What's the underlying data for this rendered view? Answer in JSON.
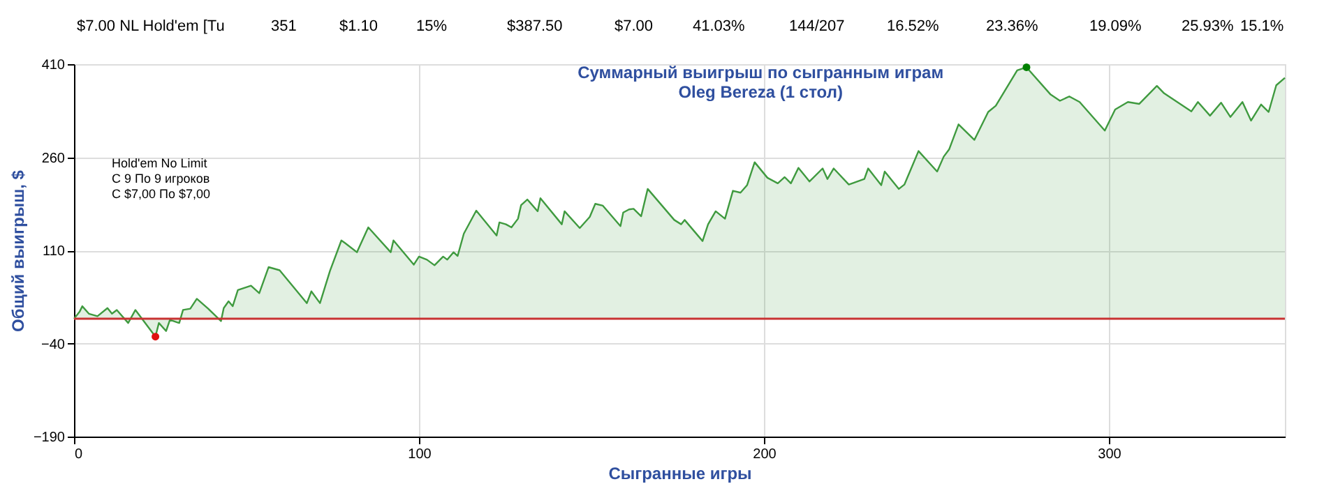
{
  "chart_data": {
    "type": "area",
    "title": "Суммарный выигрыш по сыгранным играм",
    "subtitle": "Oleg Bereza (1 стол)",
    "xlabel": "Сыгранные игры",
    "ylabel": "Общий выигрыш, $",
    "annotations": [
      "$7.00 NL Hold'em [Tu",
      "351",
      "$1.10",
      "15%",
      "$387.50",
      "$7.00",
      "41.03%",
      "144/207",
      "16.52%",
      "23.36%",
      "19.09%",
      "25.93%",
      "15.1%",
      "Hold'em No Limit",
      "С 9 По 9 игроков",
      "С $7,00 По $7,00"
    ],
    "series": [
      {
        "color": "#3f9a3f",
        "x": [
          0,
          1.6,
          2.4,
          4.3,
          6.8,
          9.7,
          11,
          12.4,
          15.7,
          17.8,
          23.6,
          24.6,
          26.7,
          27.8,
          30.5,
          31.6,
          33.7,
          35.6,
          38.9,
          42.6,
          43.4,
          44.8,
          46,
          47.5,
          51.3,
          53.7,
          56.4,
          59.6,
          67.5,
          68.8,
          71.3,
          74.2,
          77.5,
          78.5,
          82,
          85.3,
          91.8,
          92.6,
          98.5,
          100,
          102.3,
          104.5,
          107,
          108.2,
          110,
          111.2,
          113,
          116.6,
          122.5,
          123.3,
          125.2,
          126.8,
          128.7,
          129.6,
          131.4,
          134.4,
          135.2,
          141.4,
          142.2,
          146.6,
          149.5,
          151.1,
          153.3,
          158.4,
          159.2,
          160.9,
          162.2,
          164.4,
          166.3,
          174,
          176,
          177,
          182.2,
          183.8,
          186,
          188.7,
          191,
          193.2,
          195.1,
          197.3,
          201,
          204,
          206,
          207.8,
          210,
          213.2,
          217,
          218.4,
          220.2,
          224.6,
          229.1,
          230.2,
          234,
          235,
          239.1,
          240.7,
          242.3,
          244.8,
          250.2,
          252.1,
          253.7,
          256.4,
          261,
          265,
          267.2,
          273.4,
          276.1,
          283.1,
          285.8,
          288.5,
          291.5,
          298.8,
          301.8,
          305.5,
          308.8,
          313.9,
          316,
          323.9,
          325.8,
          329.3,
          332.5,
          335.2,
          338.7,
          341.2,
          344.1,
          346.3,
          348.5,
          351
        ],
        "values": [
          0,
          11,
          20,
          8,
          4,
          17,
          8,
          14,
          -7,
          14,
          -29,
          -7,
          -20,
          -2,
          -7,
          14,
          16,
          32,
          16,
          -4,
          17,
          28,
          20,
          46,
          53,
          41,
          83,
          78,
          25,
          44,
          25,
          77,
          126,
          122,
          107,
          147,
          107,
          126,
          87,
          100,
          95,
          86,
          100,
          95,
          107,
          101,
          137,
          174,
          134,
          155,
          152,
          147,
          161,
          183,
          192,
          173,
          194,
          152,
          173,
          146,
          164,
          185,
          182,
          149,
          171,
          176,
          177,
          165,
          209,
          159,
          152,
          159,
          125,
          152,
          173,
          161,
          206,
          203,
          215,
          252,
          227,
          218,
          228,
          218,
          243,
          221,
          242,
          225,
          242,
          216,
          225,
          242,
          215,
          237,
          209,
          216,
          237,
          270,
          237,
          261,
          273,
          313,
          288,
          333,
          343,
          400,
          405,
          361,
          351,
          358,
          349,
          303,
          337,
          349,
          346,
          375,
          363,
          334,
          349,
          327,
          348,
          325,
          349,
          319,
          345,
          333,
          376,
          388
        ]
      },
      {
        "type": "scatter",
        "color": "#008000",
        "x": [
          276.1
        ],
        "values": [
          405
        ]
      },
      {
        "type": "scatter",
        "color": "#e01010",
        "x": [
          23.6
        ],
        "values": [
          -29
        ]
      }
    ],
    "xlim": [
      0,
      351
    ],
    "xticks": [
      0,
      100,
      200,
      300
    ],
    "ylim": [
      -190,
      410
    ],
    "yticks": [
      -190,
      -40,
      110,
      260,
      410
    ],
    "ref_lines": [
      {
        "axis": "y",
        "value": 0,
        "color": "#c83232"
      }
    ],
    "grid": true
  }
}
